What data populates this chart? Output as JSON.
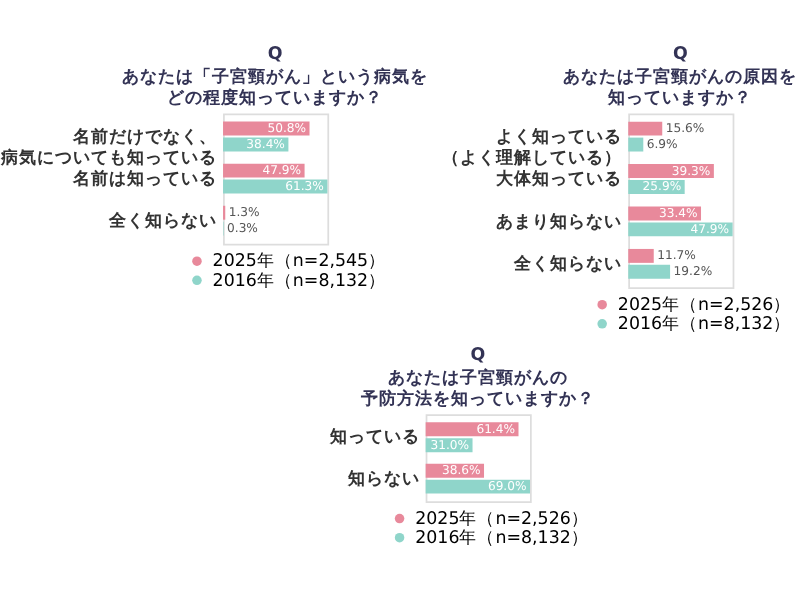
{
  "chart_data": [
    {
      "type": "bar",
      "orientation": "horizontal",
      "title": "Q",
      "subtitle": [
        "あなたは「子宮頸がん」という病気を",
        "どの程度知っていますか？"
      ],
      "categories": [
        "名前だけでなく、病気についても知っている",
        "名前は知っている",
        "全く知らない"
      ],
      "tick_labels": "y",
      "grid": false,
      "legend": "bottom",
      "series": [
        {
          "name": "2025年（n=2,545）",
          "color": "#e8899b",
          "values": [
            50.8,
            47.9,
            1.3
          ],
          "value_labels": [
            "50.8%",
            "47.9%",
            "1.3%"
          ]
        },
        {
          "name": "2016年（n=8,132）",
          "color": "#8fd5ca",
          "values": [
            38.4,
            61.3,
            0.3
          ],
          "value_labels": [
            "38.4%",
            "61.3%",
            "0.3%"
          ]
        }
      ]
    },
    {
      "type": "bar",
      "orientation": "horizontal",
      "title": "Q",
      "subtitle": [
        "あなたは子宮頸がんの原因を",
        "知っていますか？"
      ],
      "categories": [
        "よく知っている（よく理解している）",
        "大体知っている",
        "あまり知らない",
        "全く知らない"
      ],
      "tick_labels": "y",
      "grid": false,
      "legend": "bottom",
      "series": [
        {
          "name": "2025年（n=2,526）",
          "color": "#e8899b",
          "values": [
            15.6,
            39.3,
            33.4,
            11.7
          ],
          "value_labels": [
            "15.6%",
            "39.3%",
            "33.4%",
            "11.7%"
          ]
        },
        {
          "name": "2016年（n=8,132）",
          "color": "#8fd5ca",
          "values": [
            6.9,
            25.9,
            47.9,
            19.2
          ],
          "value_labels": [
            "6.9%",
            "25.9%",
            "47.9%",
            "19.2%"
          ]
        }
      ]
    },
    {
      "type": "bar",
      "orientation": "horizontal",
      "title": "Q",
      "subtitle": [
        "あなたは子宮頸がんの",
        "予防方法を知っていますか？"
      ],
      "categories": [
        "知っている",
        "知らない"
      ],
      "tick_labels": "y",
      "grid": false,
      "legend": "bottom",
      "series": [
        {
          "name": "2025年（n=2,526）",
          "color": "#e8899b",
          "values": [
            61.4,
            38.6
          ],
          "value_labels": [
            "61.4%",
            "38.6%"
          ]
        },
        {
          "name": "2016年（n=8,132）",
          "color": "#8fd5ca",
          "values": [
            31.0,
            69.0
          ],
          "value_labels": [
            "31.0%",
            "69.0%"
          ]
        }
      ]
    }
  ]
}
